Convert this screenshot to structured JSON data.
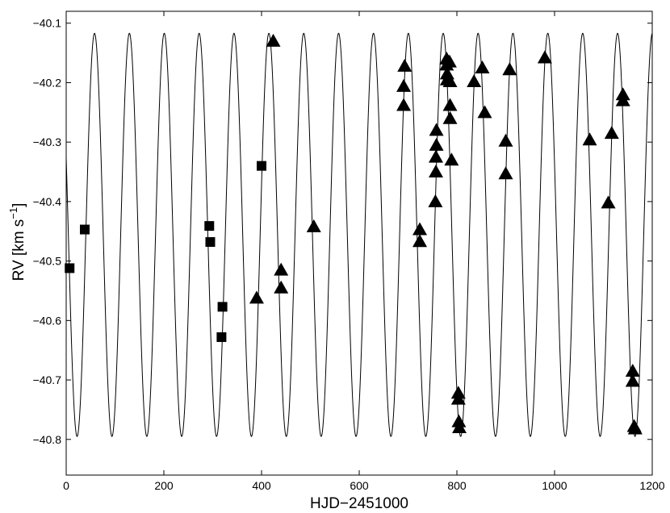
{
  "chart_data": {
    "type": "scatter",
    "xlabel": "HJD−2451000",
    "ylabel_main": "RV [km s",
    "ylabel_sup": "−1",
    "ylabel_close": "]",
    "xlim": [
      0,
      1200
    ],
    "ylim": [
      -40.86,
      -40.08
    ],
    "x_ticks": [
      0,
      200,
      400,
      600,
      800,
      1000,
      1200
    ],
    "x_tick_labels": [
      "0",
      "200",
      "400",
      "600",
      "800",
      "1000",
      "1200"
    ],
    "y_ticks": [
      -40.1,
      -40.2,
      -40.3,
      -40.4,
      -40.5,
      -40.6,
      -40.7,
      -40.8
    ],
    "y_tick_labels": [
      "−40.1",
      "−40.2",
      "−40.3",
      "−40.4",
      "−40.5",
      "−40.6",
      "−40.7",
      "−40.8"
    ],
    "grid": false,
    "model_curve": {
      "type": "sinusoid",
      "center": -40.456,
      "amplitude": 0.339,
      "period": 71.4,
      "t_max": 58
    },
    "series": [
      {
        "marker": "square",
        "color": "#000000",
        "points": [
          [
            7,
            -40.512
          ],
          [
            38,
            -40.447
          ],
          [
            293,
            -40.441
          ],
          [
            295,
            -40.468
          ],
          [
            320,
            -40.577
          ],
          [
            318,
            -40.628
          ],
          [
            400,
            -40.34
          ]
        ]
      },
      {
        "marker": "triangle",
        "color": "#000000",
        "points": [
          [
            424,
            -40.13
          ],
          [
            390,
            -40.562
          ],
          [
            440,
            -40.515
          ],
          [
            440,
            -40.545
          ],
          [
            507,
            -40.442
          ],
          [
            693,
            -40.172
          ],
          [
            691,
            -40.206
          ],
          [
            691,
            -40.238
          ],
          [
            724,
            -40.447
          ],
          [
            724,
            -40.467
          ],
          [
            758,
            -40.28
          ],
          [
            758,
            -40.305
          ],
          [
            757,
            -40.325
          ],
          [
            757,
            -40.35
          ],
          [
            756,
            -40.4
          ],
          [
            779,
            -40.16
          ],
          [
            779,
            -40.17
          ],
          [
            780,
            -40.185
          ],
          [
            780,
            -40.195
          ],
          [
            785,
            -40.165
          ],
          [
            786,
            -40.198
          ],
          [
            786,
            -40.238
          ],
          [
            786,
            -40.26
          ],
          [
            789,
            -40.33
          ],
          [
            803,
            -40.722
          ],
          [
            803,
            -40.732
          ],
          [
            804,
            -40.77
          ],
          [
            805,
            -40.78
          ],
          [
            835,
            -40.198
          ],
          [
            852,
            -40.175
          ],
          [
            857,
            -40.25
          ],
          [
            900,
            -40.298
          ],
          [
            900,
            -40.353
          ],
          [
            908,
            -40.178
          ],
          [
            980,
            -40.158
          ],
          [
            1072,
            -40.296
          ],
          [
            1110,
            -40.402
          ],
          [
            1117,
            -40.285
          ],
          [
            1140,
            -40.22
          ],
          [
            1140,
            -40.23
          ],
          [
            1160,
            -40.685
          ],
          [
            1160,
            -40.702
          ],
          [
            1163,
            -40.778
          ],
          [
            1165,
            -40.782
          ]
        ]
      }
    ]
  }
}
